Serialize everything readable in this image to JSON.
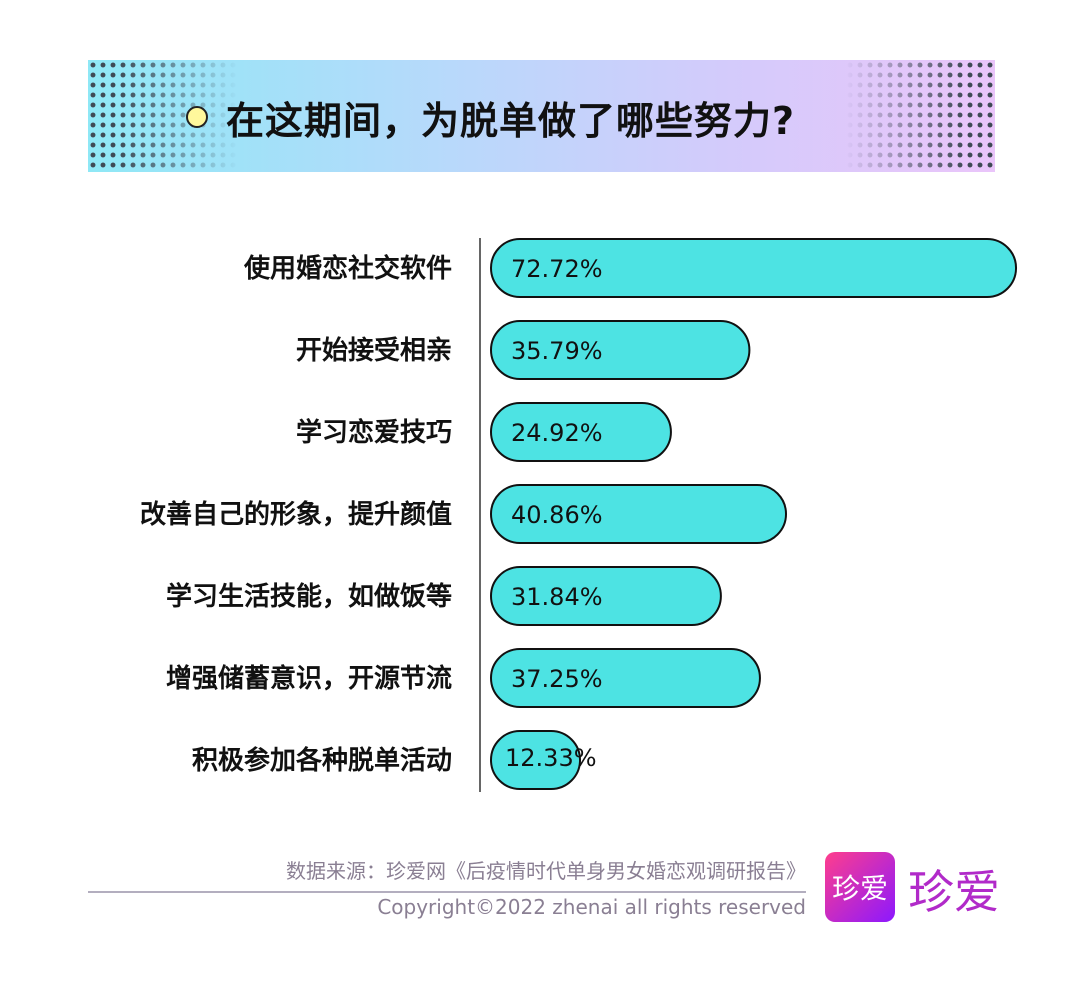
{
  "header": {
    "title": "在这期间，为脱单做了哪些努力?"
  },
  "chart_data": {
    "type": "bar",
    "orientation": "horizontal",
    "title": "在这期间，为脱单做了哪些努力?",
    "categories": [
      "使用婚恋社交软件",
      "开始接受相亲",
      "学习恋爱技巧",
      "改善自己的形象，提升颜值",
      "学习生活技能，如做饭等",
      "增强储蓄意识，开源节流",
      "积极参加各种脱单活动"
    ],
    "values": [
      72.72,
      35.79,
      24.92,
      40.86,
      31.84,
      37.25,
      12.33
    ],
    "labels": [
      "72.72%",
      "35.79%",
      "24.92%",
      "40.86%",
      "31.84%",
      "37.25%",
      "12.33%"
    ],
    "unit": "%",
    "grid": false,
    "bar_color": "#4de3e3"
  },
  "footer": {
    "source": "数据来源：珍爱网《后疫情时代单身男女婚恋观调研报告》",
    "copyright": "Copyright©2022  zhenai  all rights reserved",
    "logo": "珍爱",
    "logo_color": "#b12ac9"
  }
}
